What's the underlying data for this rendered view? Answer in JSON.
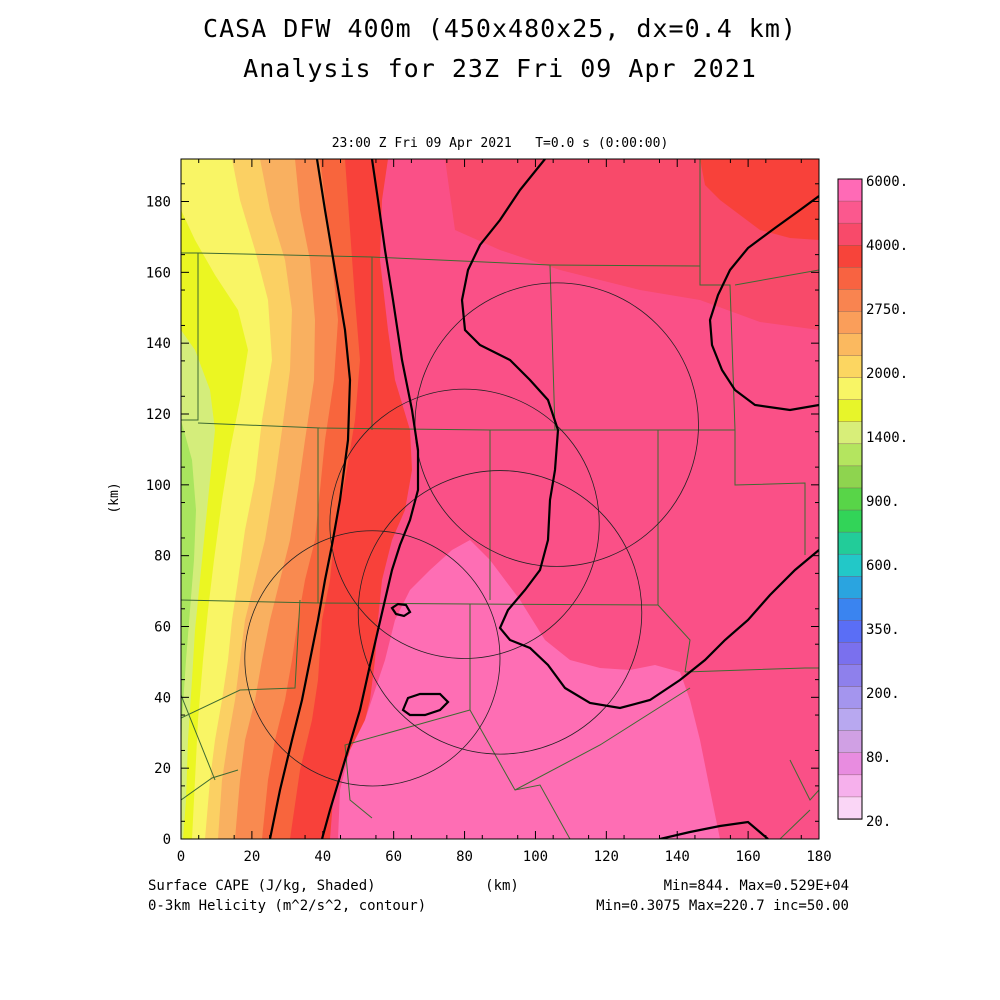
{
  "header": {
    "title": "CASA DFW 400m (450x480x25, dx=0.4 km)",
    "subtitle": "Analysis for 23Z Fri 09 Apr 2021",
    "time_line": "23:00 Z Fri 09 Apr 2021   T=0.0 s (0:00:00)"
  },
  "footer": {
    "left_1": "Surface CAPE (J/kg, Shaded)",
    "left_2": "0-3km Helicity (m^2/s^2, contour)",
    "center": "(km)",
    "right_1": "Min=844. Max=0.529E+04",
    "right_2": "Min=0.3075 Max=220.7 inc=50.00"
  },
  "colors": {
    "pink_light": "#fe6eb4",
    "pink": "#fa5087",
    "red_pink": "#f84a6a",
    "red": "#f8413a",
    "orange_red": "#f8653d",
    "orange": "#f98a50",
    "light_orange": "#f9b060",
    "yellow_orange": "#fbd063",
    "yellow": "#f9f565",
    "yellow_green": "#ebf622",
    "lime": "#d4ed7b",
    "green": "#a9e55e"
  },
  "chart_data": {
    "type": "heatmap",
    "title": "",
    "xlabel": "(km)",
    "ylabel": "(km)",
    "xlim": [
      0,
      180
    ],
    "ylim": [
      0,
      192
    ],
    "xticks": [
      "0",
      "20",
      "40",
      "60",
      "80",
      "100",
      "120",
      "140",
      "160",
      "180"
    ],
    "yticks": [
      "0",
      "20",
      "40",
      "60",
      "80",
      "100",
      "120",
      "140",
      "160",
      "180"
    ],
    "field": "Surface CAPE (J/kg, Shaded)",
    "field_min": 844,
    "field_max": 5290,
    "contour_field": "0-3km Helicity (m^2/s^2, contour)",
    "contour_min": 0.3075,
    "contour_max": 220.7,
    "contour_increment": 50.0,
    "colorbar": {
      "labels": [
        "6000.",
        "4000.",
        "2750.",
        "2000.",
        "1400.",
        "900.",
        "600.",
        "350.",
        "200.",
        "80.",
        "20."
      ],
      "colors": [
        "#ff6ab6",
        "#fb588e",
        "#f84a6a",
        "#f7443a",
        "#f86341",
        "#f98450",
        "#fa9e5a",
        "#fbb95f",
        "#fcd661",
        "#f8f565",
        "#e7f52a",
        "#d8ee79",
        "#b4e55f",
        "#8ed44f",
        "#58d548",
        "#32d458",
        "#22cc99",
        "#22c8c8",
        "#2aa4e0",
        "#3a84f0",
        "#5a6ef6",
        "#7a70ee",
        "#8e80ec",
        "#a495ee",
        "#b8a8f0",
        "#d0a0e4",
        "#e88ce0",
        "#f6b0ec",
        "#fad6f6"
      ]
    },
    "radar_rings_km": [
      {
        "center": [
          54,
          51
        ],
        "radius": 36
      },
      {
        "center": [
          80,
          89
        ],
        "radius": 38
      },
      {
        "center": [
          90,
          64
        ],
        "radius": 40
      },
      {
        "center": [
          106,
          117
        ],
        "radius": 40
      }
    ]
  }
}
